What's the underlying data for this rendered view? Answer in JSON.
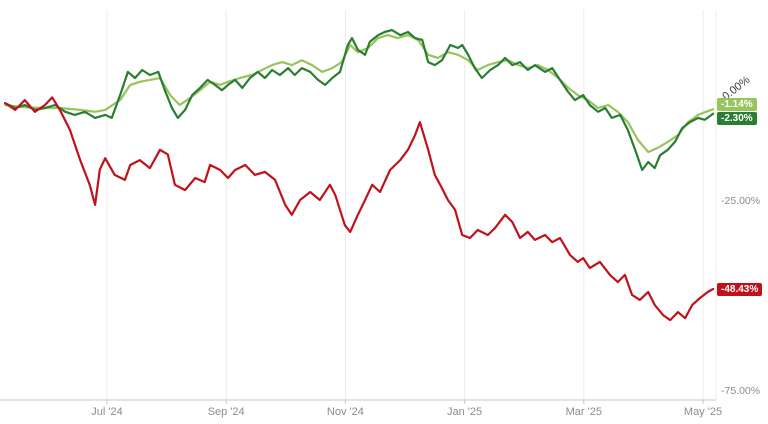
{
  "chart_data": {
    "type": "line",
    "title": "",
    "xlabel": "",
    "ylabel": "",
    "legend": "none (end-value badges on right edge)",
    "x_axis": {
      "ticks": [
        {
          "m": 0,
          "label": "Jul '24"
        },
        {
          "m": 2,
          "label": "Sep '24"
        },
        {
          "m": 4,
          "label": "Nov '24"
        },
        {
          "m": 6,
          "label": "Jan '25"
        },
        {
          "m": 8,
          "label": "Mar '25"
        },
        {
          "m": 10,
          "label": "May '25"
        }
      ],
      "range_months_from_jul24": [
        -1.71,
        10.17
      ]
    },
    "y_axis": {
      "unit": "%",
      "zero_label": {
        "text": "0.00%",
        "v": 0,
        "rotated": true
      },
      "ticks": [
        {
          "v": -25,
          "label": "-25.00%"
        },
        {
          "v": -75,
          "label": "-75.00%"
        }
      ],
      "range": [
        25,
        -77.5
      ],
      "grid": "vertical-only"
    },
    "style": {
      "grid_color": "#ebebeb",
      "axis_color": "#c9c9c9",
      "tick_text_color": "#8c8c8c",
      "zero_label_color": "#3c3c3c",
      "background": "#ffffff"
    },
    "series": [
      {
        "id": "light-green",
        "color": "#97c45c",
        "end_label": "-1.14%",
        "end_value": -1.14,
        "points": [
          [
            -1.71,
            0
          ],
          [
            -1.46,
            -0.5
          ],
          [
            -1.12,
            -0.8
          ],
          [
            -0.79,
            -0.8
          ],
          [
            -0.45,
            -1.3
          ],
          [
            -0.2,
            -1.8
          ],
          [
            -0.03,
            -1.3
          ],
          [
            0.22,
            1.3
          ],
          [
            0.39,
            5.3
          ],
          [
            0.55,
            6.1
          ],
          [
            0.72,
            6.6
          ],
          [
            0.89,
            7.1
          ],
          [
            1.06,
            2.6
          ],
          [
            1.22,
            0
          ],
          [
            1.39,
            1.8
          ],
          [
            1.56,
            3.9
          ],
          [
            1.73,
            6.1
          ],
          [
            1.9,
            5.3
          ],
          [
            2.03,
            6.1
          ],
          [
            2.23,
            7.1
          ],
          [
            2.43,
            7.9
          ],
          [
            2.6,
            9.2
          ],
          [
            2.77,
            10.5
          ],
          [
            2.94,
            11.3
          ],
          [
            3.1,
            10.5
          ],
          [
            3.27,
            11.8
          ],
          [
            3.44,
            10.5
          ],
          [
            3.61,
            8.7
          ],
          [
            3.78,
            9.7
          ],
          [
            3.94,
            11.3
          ],
          [
            4.08,
            15.8
          ],
          [
            4.21,
            13.9
          ],
          [
            4.38,
            15
          ],
          [
            4.55,
            17.6
          ],
          [
            4.71,
            18.4
          ],
          [
            4.88,
            17.6
          ],
          [
            5.05,
            18.4
          ],
          [
            5.22,
            17.1
          ],
          [
            5.39,
            13.2
          ],
          [
            5.55,
            12.4
          ],
          [
            5.72,
            13.9
          ],
          [
            5.89,
            13.2
          ],
          [
            6.06,
            11.8
          ],
          [
            6.22,
            9.2
          ],
          [
            6.39,
            10.5
          ],
          [
            6.56,
            11.3
          ],
          [
            6.73,
            11.8
          ],
          [
            6.9,
            10.5
          ],
          [
            7.06,
            9.7
          ],
          [
            7.23,
            10.5
          ],
          [
            7.4,
            9.2
          ],
          [
            7.57,
            7.1
          ],
          [
            7.74,
            4.5
          ],
          [
            7.9,
            2.6
          ],
          [
            8.07,
            1.3
          ],
          [
            8.24,
            -0.8
          ],
          [
            8.41,
            0
          ],
          [
            8.57,
            -1.8
          ],
          [
            8.74,
            -4.5
          ],
          [
            8.91,
            -9.2
          ],
          [
            9.08,
            -12.4
          ],
          [
            9.24,
            -11.3
          ],
          [
            9.41,
            -9.7
          ],
          [
            9.58,
            -7.9
          ],
          [
            9.75,
            -4.5
          ],
          [
            9.92,
            -2.6
          ],
          [
            10.05,
            -1.8
          ],
          [
            10.17,
            -1.14
          ]
        ]
      },
      {
        "id": "dark-green",
        "color": "#2a7e33",
        "end_label": "-2.30%",
        "end_value": -2.3,
        "points": [
          [
            -1.71,
            0.5
          ],
          [
            -1.54,
            -0.8
          ],
          [
            -1.38,
            0
          ],
          [
            -1.21,
            -1.3
          ],
          [
            -1.04,
            -0.8
          ],
          [
            -0.87,
            0
          ],
          [
            -0.7,
            -1.8
          ],
          [
            -0.54,
            -2.6
          ],
          [
            -0.37,
            -1.8
          ],
          [
            -0.2,
            -3.4
          ],
          [
            -0.03,
            -2.6
          ],
          [
            0.08,
            -3.4
          ],
          [
            0.22,
            2.6
          ],
          [
            0.35,
            8.7
          ],
          [
            0.47,
            7.1
          ],
          [
            0.59,
            9.2
          ],
          [
            0.72,
            7.9
          ],
          [
            0.86,
            8.7
          ],
          [
            0.97,
            3.9
          ],
          [
            1.09,
            -0.8
          ],
          [
            1.19,
            -3.4
          ],
          [
            1.31,
            -1.3
          ],
          [
            1.43,
            2.6
          ],
          [
            1.56,
            4.5
          ],
          [
            1.69,
            6.6
          ],
          [
            1.81,
            5.3
          ],
          [
            1.93,
            3.9
          ],
          [
            2.03,
            5.3
          ],
          [
            2.15,
            6.6
          ],
          [
            2.27,
            4.5
          ],
          [
            2.4,
            7.1
          ],
          [
            2.53,
            8.7
          ],
          [
            2.65,
            7.1
          ],
          [
            2.77,
            9.2
          ],
          [
            2.9,
            7.9
          ],
          [
            3.04,
            9.7
          ],
          [
            3.15,
            7.9
          ],
          [
            3.27,
            9.7
          ],
          [
            3.41,
            8.7
          ],
          [
            3.54,
            6.6
          ],
          [
            3.66,
            5.3
          ],
          [
            3.78,
            7.1
          ],
          [
            3.91,
            8.7
          ],
          [
            4.04,
            15.8
          ],
          [
            4.11,
            17.6
          ],
          [
            4.21,
            14.5
          ],
          [
            4.33,
            13.2
          ],
          [
            4.41,
            16.6
          ],
          [
            4.55,
            18.4
          ],
          [
            4.66,
            19.2
          ],
          [
            4.78,
            19.7
          ],
          [
            4.92,
            18.4
          ],
          [
            5.05,
            19.2
          ],
          [
            5.17,
            17.6
          ],
          [
            5.29,
            17.1
          ],
          [
            5.39,
            11.3
          ],
          [
            5.5,
            10.5
          ],
          [
            5.62,
            11.8
          ],
          [
            5.76,
            15.8
          ],
          [
            5.89,
            15
          ],
          [
            5.96,
            15.8
          ],
          [
            6.06,
            13.2
          ],
          [
            6.17,
            9.7
          ],
          [
            6.29,
            7.1
          ],
          [
            6.43,
            9.2
          ],
          [
            6.56,
            10.5
          ],
          [
            6.68,
            12.4
          ],
          [
            6.8,
            10.5
          ],
          [
            6.93,
            11.3
          ],
          [
            7.06,
            9.2
          ],
          [
            7.18,
            10.5
          ],
          [
            7.35,
            8.7
          ],
          [
            7.47,
            9.7
          ],
          [
            7.6,
            6.6
          ],
          [
            7.74,
            3.4
          ],
          [
            7.85,
            1.3
          ],
          [
            7.99,
            2.6
          ],
          [
            8.1,
            0
          ],
          [
            8.24,
            -1.8
          ],
          [
            8.36,
            -0.8
          ],
          [
            8.47,
            -3.4
          ],
          [
            8.61,
            -2.6
          ],
          [
            8.74,
            -6.6
          ],
          [
            8.86,
            -11.8
          ],
          [
            8.98,
            -17.1
          ],
          [
            9.08,
            -15
          ],
          [
            9.19,
            -16.6
          ],
          [
            9.28,
            -13.2
          ],
          [
            9.41,
            -11.8
          ],
          [
            9.53,
            -9.7
          ],
          [
            9.65,
            -6.1
          ],
          [
            9.78,
            -4.5
          ],
          [
            9.92,
            -3.4
          ],
          [
            10.03,
            -3.9
          ],
          [
            10.17,
            -2.3
          ]
        ]
      },
      {
        "id": "red",
        "color": "#c1121c",
        "end_label": "-48.43%",
        "end_value": -48.43,
        "points": [
          [
            -1.71,
            0.5
          ],
          [
            -1.54,
            -1.3
          ],
          [
            -1.38,
            1.3
          ],
          [
            -1.21,
            -1.8
          ],
          [
            -1.04,
            0
          ],
          [
            -0.92,
            2
          ],
          [
            -0.79,
            -1.3
          ],
          [
            -0.62,
            -6.6
          ],
          [
            -0.45,
            -14.5
          ],
          [
            -0.29,
            -21
          ],
          [
            -0.2,
            -26.3
          ],
          [
            -0.12,
            -17
          ],
          [
            -0.03,
            -14
          ],
          [
            0.13,
            -18.4
          ],
          [
            0.3,
            -19.7
          ],
          [
            0.39,
            -15.8
          ],
          [
            0.55,
            -14.5
          ],
          [
            0.72,
            -16.6
          ],
          [
            0.89,
            -11.8
          ],
          [
            1.02,
            -13
          ],
          [
            1.14,
            -21
          ],
          [
            1.31,
            -22.4
          ],
          [
            1.48,
            -19.2
          ],
          [
            1.64,
            -20.3
          ],
          [
            1.73,
            -15.8
          ],
          [
            1.9,
            -17.1
          ],
          [
            2.03,
            -19.2
          ],
          [
            2.15,
            -17.1
          ],
          [
            2.32,
            -15.8
          ],
          [
            2.48,
            -18.4
          ],
          [
            2.65,
            -17.6
          ],
          [
            2.82,
            -19.7
          ],
          [
            2.99,
            -26.3
          ],
          [
            3.1,
            -28.9
          ],
          [
            3.24,
            -25
          ],
          [
            3.41,
            -22.9
          ],
          [
            3.57,
            -25
          ],
          [
            3.74,
            -21
          ],
          [
            3.83,
            -23.7
          ],
          [
            3.99,
            -31.6
          ],
          [
            4.08,
            -33.4
          ],
          [
            4.21,
            -28.9
          ],
          [
            4.33,
            -25
          ],
          [
            4.45,
            -21
          ],
          [
            4.58,
            -22.9
          ],
          [
            4.75,
            -17.1
          ],
          [
            4.92,
            -14.5
          ],
          [
            5.05,
            -11.8
          ],
          [
            5.17,
            -7.9
          ],
          [
            5.25,
            -4.5
          ],
          [
            5.39,
            -11.8
          ],
          [
            5.5,
            -18.4
          ],
          [
            5.59,
            -21
          ],
          [
            5.72,
            -25
          ],
          [
            5.84,
            -27.6
          ],
          [
            5.96,
            -34.2
          ],
          [
            6.09,
            -35
          ],
          [
            6.22,
            -32.9
          ],
          [
            6.39,
            -34.2
          ],
          [
            6.51,
            -32.4
          ],
          [
            6.68,
            -28.9
          ],
          [
            6.8,
            -30.8
          ],
          [
            6.93,
            -35
          ],
          [
            7.06,
            -33.4
          ],
          [
            7.18,
            -35.5
          ],
          [
            7.35,
            -34.2
          ],
          [
            7.47,
            -36.1
          ],
          [
            7.6,
            -35
          ],
          [
            7.77,
            -39.5
          ],
          [
            7.9,
            -41.3
          ],
          [
            7.99,
            -40.3
          ],
          [
            8.1,
            -42.9
          ],
          [
            8.27,
            -41.3
          ],
          [
            8.44,
            -44.7
          ],
          [
            8.57,
            -46.6
          ],
          [
            8.69,
            -44.7
          ],
          [
            8.81,
            -50
          ],
          [
            8.94,
            -51.3
          ],
          [
            9.08,
            -49.2
          ],
          [
            9.19,
            -52.6
          ],
          [
            9.33,
            -55.3
          ],
          [
            9.45,
            -56.6
          ],
          [
            9.58,
            -54.5
          ],
          [
            9.7,
            -56.1
          ],
          [
            9.82,
            -52.6
          ],
          [
            9.95,
            -50.8
          ],
          [
            10.08,
            -49.2
          ],
          [
            10.17,
            -48.43
          ]
        ]
      }
    ]
  }
}
